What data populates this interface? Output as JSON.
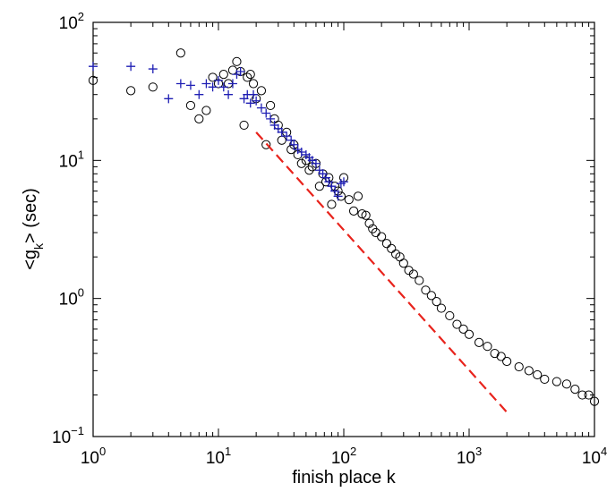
{
  "chart_data": {
    "type": "scatter",
    "title": "",
    "xlabel": "finish place k",
    "ylabel": {
      "pre": "<g",
      "sub": "k",
      "post": ">  (sec)"
    },
    "xscale": "log",
    "yscale": "log",
    "xlim": [
      1,
      10000
    ],
    "ylim": [
      0.1,
      100
    ],
    "grid": false,
    "legend": "none",
    "x_ticks": [
      {
        "value": 1,
        "base": "10",
        "exp": "0"
      },
      {
        "value": 10,
        "base": "10",
        "exp": "1"
      },
      {
        "value": 100,
        "base": "10",
        "exp": "2"
      },
      {
        "value": 1000,
        "base": "10",
        "exp": "3"
      },
      {
        "value": 10000,
        "base": "10",
        "exp": "4"
      }
    ],
    "y_ticks": [
      {
        "value": 0.1,
        "base": "10",
        "exp": "−1"
      },
      {
        "value": 1,
        "base": "10",
        "exp": "0"
      },
      {
        "value": 10,
        "base": "10",
        "exp": "1"
      },
      {
        "value": 100,
        "base": "10",
        "exp": "2"
      }
    ],
    "series": [
      {
        "marker": "circle",
        "color": "#000000",
        "x": [
          1,
          2,
          3,
          5,
          6,
          7,
          8,
          9,
          10,
          11,
          12,
          13,
          14,
          15,
          16,
          17,
          18,
          19,
          20,
          22,
          24,
          26,
          28,
          30,
          32,
          35,
          38,
          40,
          43,
          46,
          50,
          53,
          56,
          60,
          64,
          68,
          72,
          76,
          80,
          85,
          90,
          95,
          100,
          110,
          120,
          130,
          140,
          150,
          160,
          170,
          180,
          200,
          220,
          240,
          260,
          280,
          300,
          330,
          360,
          400,
          450,
          500,
          550,
          600,
          700,
          800,
          900,
          1000,
          1200,
          1400,
          1600,
          1800,
          2000,
          2500,
          3000,
          3500,
          4000,
          5000,
          6000,
          7000,
          8000,
          9000,
          10000
        ],
        "y": [
          38,
          32,
          34,
          60,
          25,
          20,
          23,
          40,
          36,
          42,
          36,
          45,
          52,
          44,
          18,
          40,
          42,
          36,
          28,
          32,
          13,
          25,
          20,
          18,
          14,
          16,
          12,
          13,
          11,
          9.5,
          10,
          8.5,
          9,
          9.5,
          6.5,
          8,
          7,
          7.5,
          4.8,
          6.5,
          6,
          5.5,
          7.5,
          5.2,
          4.3,
          5.5,
          4.1,
          4.0,
          3.5,
          3.2,
          3.0,
          2.8,
          2.5,
          2.3,
          2.1,
          2.0,
          1.8,
          1.6,
          1.5,
          1.35,
          1.15,
          1.05,
          0.95,
          0.85,
          0.75,
          0.65,
          0.6,
          0.55,
          0.48,
          0.45,
          0.4,
          0.38,
          0.35,
          0.32,
          0.3,
          0.28,
          0.26,
          0.25,
          0.24,
          0.22,
          0.2,
          0.2,
          0.18
        ]
      },
      {
        "marker": "plus",
        "color": "#1f1fb4",
        "x": [
          1,
          2,
          3,
          4,
          5,
          6,
          7,
          8,
          9,
          10,
          11,
          12,
          13,
          14,
          15,
          16,
          17,
          18,
          19,
          20,
          22,
          24,
          26,
          28,
          30,
          32,
          35,
          38,
          40,
          43,
          46,
          50,
          53,
          56,
          60,
          64,
          68,
          72,
          76,
          80,
          85,
          90,
          95,
          100
        ],
        "y": [
          48,
          48,
          46,
          28,
          36,
          35,
          30,
          36,
          34,
          38,
          34,
          30,
          36,
          42,
          44,
          28,
          30,
          26,
          30,
          27,
          24,
          22,
          20,
          18,
          17,
          16,
          15,
          14,
          13,
          12,
          11.5,
          11,
          10.5,
          10,
          9.5,
          8.5,
          8,
          7.5,
          7,
          6.5,
          6,
          5.5,
          6.8,
          7
        ]
      },
      {
        "marker": "dashed-line",
        "color": "#e8231c",
        "x": [
          20,
          2000
        ],
        "y": [
          16,
          0.15
        ]
      }
    ]
  }
}
